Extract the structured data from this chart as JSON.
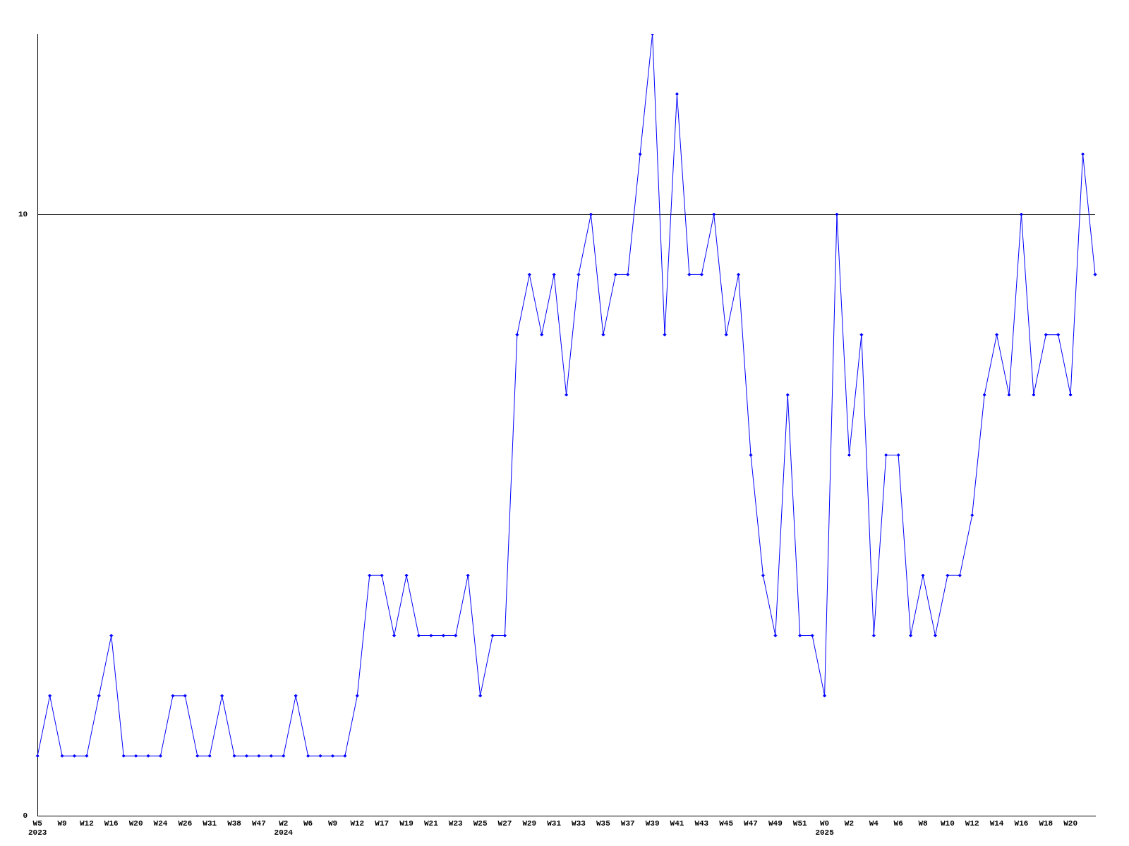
{
  "chart_data": {
    "type": "line",
    "categories": [
      "W5\n2023",
      null,
      "W9",
      null,
      "W12",
      null,
      "W16",
      null,
      "W20",
      null,
      "W24",
      null,
      "W26",
      null,
      "W31",
      null,
      "W38",
      null,
      "W47",
      null,
      "W2\n2024",
      null,
      "W6",
      null,
      "W9",
      null,
      "W12",
      null,
      "W17",
      null,
      "W19",
      null,
      "W21",
      null,
      "W23",
      null,
      "W25",
      null,
      "W27",
      null,
      "W29",
      null,
      "W31",
      null,
      "W33",
      null,
      "W35",
      null,
      "W37",
      null,
      "W39",
      null,
      "W41",
      null,
      "W43",
      null,
      "W45",
      null,
      "W47",
      null,
      "W49",
      null,
      "W51",
      null,
      "W0\n2025",
      null,
      "W2",
      null,
      "W4",
      null,
      "W6",
      null,
      "W8",
      null,
      "W10",
      null,
      "W12",
      null,
      "W14",
      null,
      "W16",
      null,
      "W18",
      null,
      "W20",
      null,
      null
    ],
    "series": [
      {
        "color": "#0000ff",
        "values": [
          1,
          2,
          1,
          1,
          1,
          2,
          3,
          1,
          1,
          1,
          1,
          2,
          2,
          1,
          1,
          2,
          1,
          1,
          1,
          1,
          1,
          2,
          1,
          1,
          1,
          1,
          2,
          4,
          4,
          3,
          4,
          3,
          3,
          3,
          3,
          4,
          2,
          3,
          3,
          8,
          9,
          8,
          9,
          7,
          9,
          10,
          8,
          9,
          9,
          11,
          13,
          8,
          12,
          9,
          9,
          10,
          8,
          9,
          6,
          4,
          3,
          7,
          3,
          3,
          2,
          10,
          6,
          8,
          3,
          6,
          6,
          3,
          4,
          3,
          4,
          4,
          5,
          7,
          8,
          7,
          10,
          7,
          8,
          8,
          7,
          11,
          9
        ]
      }
    ],
    "ylim": [
      0,
      13
    ],
    "yticks": [
      0,
      10
    ],
    "grid": "y",
    "legend": false,
    "marker": "diamond",
    "line_style": "solid"
  }
}
